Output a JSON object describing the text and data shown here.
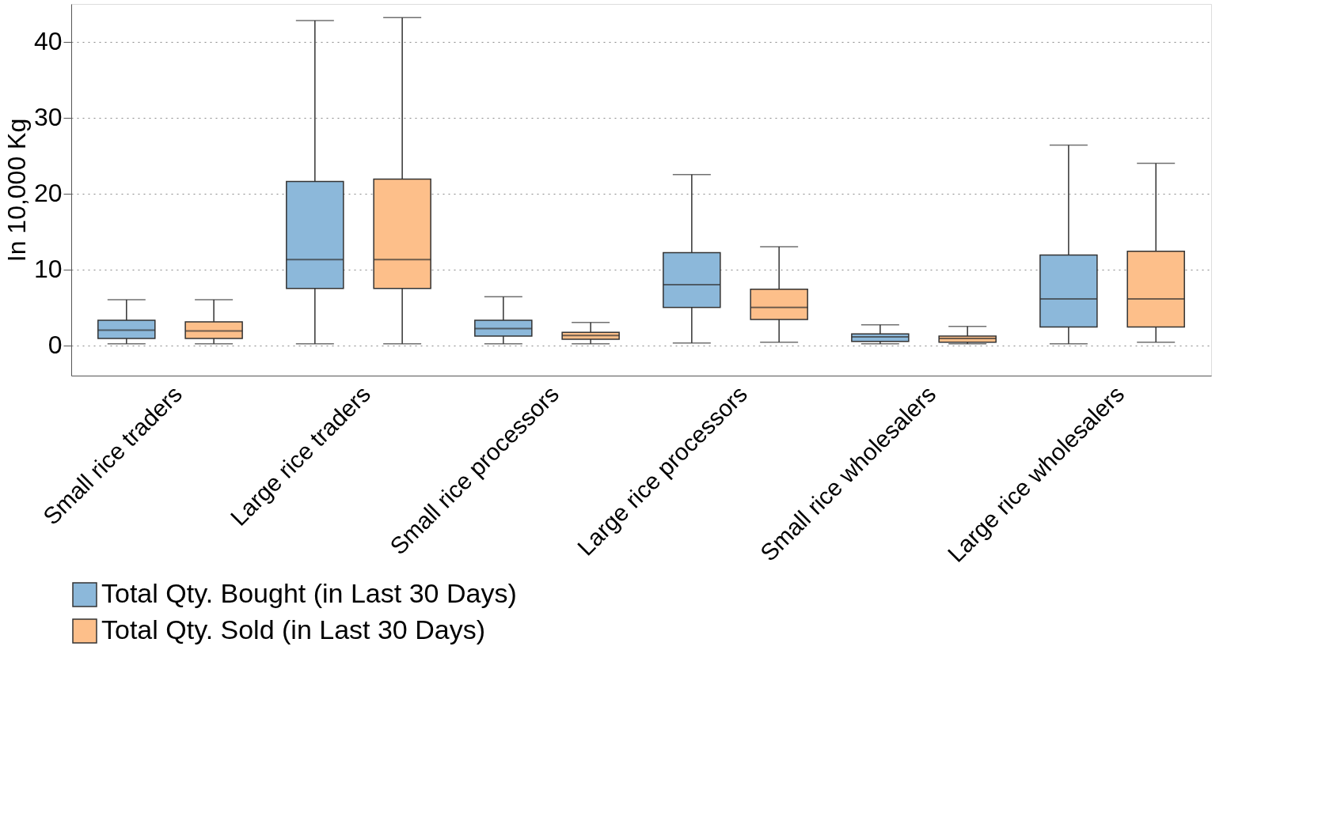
{
  "chart_data": {
    "type": "box",
    "ylabel": "In 10,000 Kg",
    "categories": [
      "Small rice traders",
      "Large rice traders",
      "Small rice processors",
      "Large rice processors",
      "Small rice wholesalers",
      "Large rice wholesalers"
    ],
    "series": [
      {
        "name": "Total Qty. Bought (in Last 30 Days)",
        "color": "#8cb8da",
        "boxes": [
          {
            "low": 0.2,
            "q1": 0.9,
            "median": 2.0,
            "q3": 3.3,
            "high": 6.0
          },
          {
            "low": 0.2,
            "q1": 7.5,
            "median": 11.3,
            "q3": 21.6,
            "high": 42.8
          },
          {
            "low": 0.2,
            "q1": 1.2,
            "median": 2.2,
            "q3": 3.3,
            "high": 6.4
          },
          {
            "low": 0.3,
            "q1": 5.0,
            "median": 8.0,
            "q3": 12.2,
            "high": 22.5
          },
          {
            "low": 0.2,
            "q1": 0.5,
            "median": 1.1,
            "q3": 1.5,
            "high": 2.7
          },
          {
            "low": 0.2,
            "q1": 2.4,
            "median": 6.1,
            "q3": 11.9,
            "high": 26.4
          }
        ]
      },
      {
        "name": "Total Qty. Sold (in Last 30 Days)",
        "color": "#fdbf8a",
        "boxes": [
          {
            "low": 0.2,
            "q1": 0.9,
            "median": 1.9,
            "q3": 3.1,
            "high": 6.0
          },
          {
            "low": 0.2,
            "q1": 7.5,
            "median": 11.3,
            "q3": 21.9,
            "high": 43.2
          },
          {
            "low": 0.2,
            "q1": 0.8,
            "median": 1.3,
            "q3": 1.7,
            "high": 3.0
          },
          {
            "low": 0.4,
            "q1": 3.4,
            "median": 5.0,
            "q3": 7.4,
            "high": 13.0
          },
          {
            "low": 0.2,
            "q1": 0.4,
            "median": 0.9,
            "q3": 1.2,
            "high": 2.5
          },
          {
            "low": 0.4,
            "q1": 2.4,
            "median": 6.1,
            "q3": 12.4,
            "high": 24.0
          }
        ]
      }
    ],
    "ylim": [
      -4,
      45
    ],
    "yticks": [
      0,
      10,
      20,
      30,
      40
    ],
    "grid": "y",
    "legend": "bottom"
  }
}
